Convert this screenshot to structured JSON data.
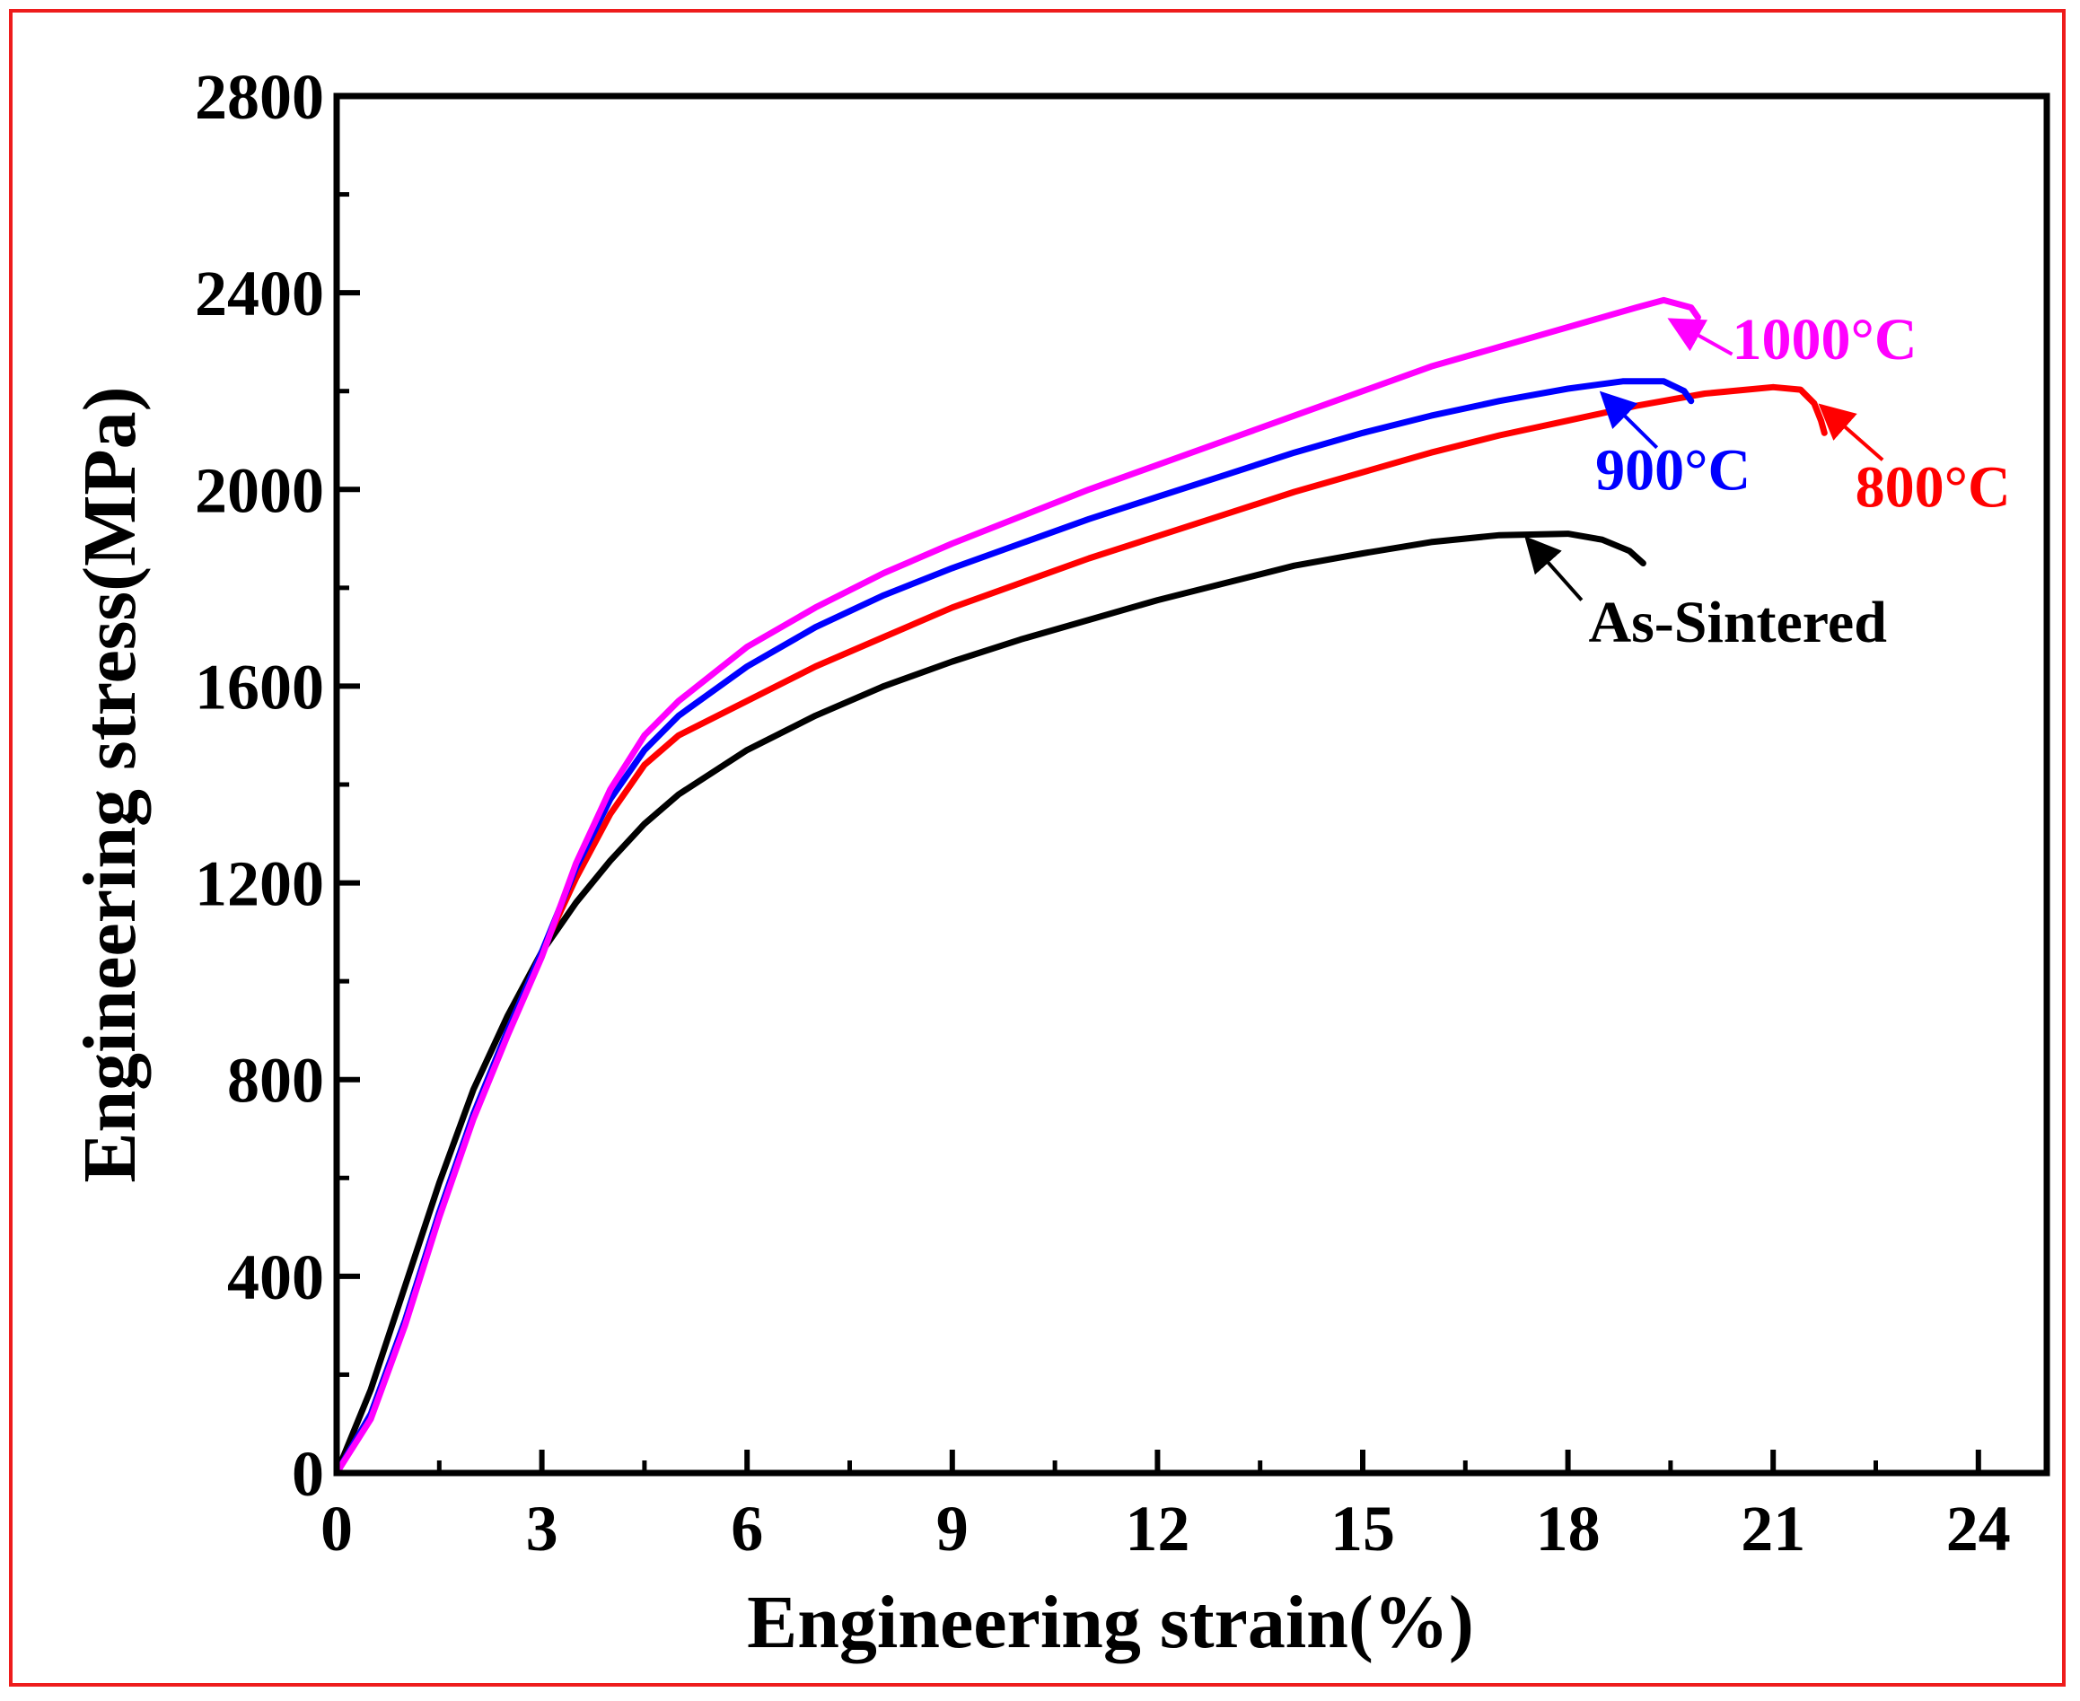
{
  "chart_data": {
    "type": "line",
    "title": "",
    "xlabel": "Engineering strain(%)",
    "ylabel": "Engineering stress(MPa)",
    "xlim": [
      0,
      25
    ],
    "ylim": [
      0,
      2800
    ],
    "xticks": [
      0,
      3,
      6,
      9,
      12,
      15,
      18,
      21,
      24
    ],
    "yticks": [
      0,
      400,
      800,
      1200,
      1600,
      2000,
      2400,
      2800
    ],
    "xtick_labels": [
      "0",
      "3",
      "6",
      "9",
      "12",
      "15",
      "18",
      "21",
      "24"
    ],
    "ytick_labels": [
      "0",
      "400",
      "800",
      "1200",
      "1600",
      "2000",
      "2400",
      "2800"
    ],
    "grid": false,
    "series": [
      {
        "name": "As-Sintered",
        "color": "#000000",
        "points": [
          [
            0,
            0
          ],
          [
            0.5,
            170
          ],
          [
            1,
            380
          ],
          [
            1.5,
            590
          ],
          [
            2,
            780
          ],
          [
            2.5,
            930
          ],
          [
            3,
            1060
          ],
          [
            3.5,
            1160
          ],
          [
            4,
            1245
          ],
          [
            4.5,
            1320
          ],
          [
            5,
            1380
          ],
          [
            6,
            1470
          ],
          [
            7,
            1540
          ],
          [
            8,
            1600
          ],
          [
            9,
            1650
          ],
          [
            10,
            1695
          ],
          [
            11,
            1735
          ],
          [
            12,
            1775
          ],
          [
            13,
            1810
          ],
          [
            14,
            1845
          ],
          [
            15,
            1870
          ],
          [
            16,
            1893
          ],
          [
            17,
            1907
          ],
          [
            18,
            1910
          ],
          [
            18.5,
            1898
          ],
          [
            18.9,
            1875
          ],
          [
            19.1,
            1850
          ]
        ],
        "annotation": {
          "text": "As-Sintered",
          "arrow_to": [
            17.4,
            1900
          ],
          "arrow_from": [
            18.2,
            1775
          ],
          "text_at": [
            18.3,
            1690
          ]
        }
      },
      {
        "name": "800°C",
        "color": "#ff0000",
        "points": [
          [
            0,
            0
          ],
          [
            0.5,
            120
          ],
          [
            1,
            310
          ],
          [
            1.5,
            530
          ],
          [
            2,
            730
          ],
          [
            2.5,
            900
          ],
          [
            3,
            1060
          ],
          [
            3.5,
            1210
          ],
          [
            4,
            1340
          ],
          [
            4.5,
            1440
          ],
          [
            5,
            1500
          ],
          [
            6,
            1570
          ],
          [
            7,
            1640
          ],
          [
            8,
            1700
          ],
          [
            9,
            1760
          ],
          [
            10,
            1810
          ],
          [
            11,
            1860
          ],
          [
            12,
            1905
          ],
          [
            13,
            1950
          ],
          [
            14,
            1995
          ],
          [
            15,
            2035
          ],
          [
            16,
            2075
          ],
          [
            17,
            2110
          ],
          [
            18,
            2140
          ],
          [
            19,
            2170
          ],
          [
            20,
            2195
          ],
          [
            21,
            2208
          ],
          [
            21.4,
            2203
          ],
          [
            21.6,
            2175
          ],
          [
            21.7,
            2140
          ],
          [
            21.75,
            2115
          ]
        ],
        "annotation": {
          "text": "800°C",
          "arrow_to": [
            21.7,
            2170
          ],
          "arrow_from": [
            22.6,
            2060
          ],
          "text_at": [
            22.2,
            1965
          ]
        }
      },
      {
        "name": "900°C",
        "color": "#0000ff",
        "points": [
          [
            0,
            0
          ],
          [
            0.5,
            120
          ],
          [
            1,
            310
          ],
          [
            1.5,
            530
          ],
          [
            2,
            730
          ],
          [
            2.5,
            900
          ],
          [
            3,
            1060
          ],
          [
            3.5,
            1230
          ],
          [
            4,
            1370
          ],
          [
            4.5,
            1470
          ],
          [
            5,
            1540
          ],
          [
            6,
            1640
          ],
          [
            7,
            1720
          ],
          [
            8,
            1785
          ],
          [
            9,
            1840
          ],
          [
            10,
            1890
          ],
          [
            11,
            1940
          ],
          [
            12,
            1985
          ],
          [
            13,
            2030
          ],
          [
            14,
            2075
          ],
          [
            15,
            2115
          ],
          [
            16,
            2150
          ],
          [
            17,
            2180
          ],
          [
            18,
            2205
          ],
          [
            18.8,
            2220
          ],
          [
            19.4,
            2220
          ],
          [
            19.7,
            2200
          ],
          [
            19.8,
            2180
          ]
        ],
        "annotation": {
          "text": "900°C",
          "arrow_to": [
            18.5,
            2195
          ],
          "arrow_from": [
            19.3,
            2085
          ],
          "text_at": [
            18.4,
            2000
          ]
        }
      },
      {
        "name": "1000°C",
        "color": "#ff00ff",
        "points": [
          [
            0,
            0
          ],
          [
            0.5,
            110
          ],
          [
            1,
            300
          ],
          [
            1.5,
            520
          ],
          [
            2,
            720
          ],
          [
            2.5,
            890
          ],
          [
            3,
            1050
          ],
          [
            3.5,
            1240
          ],
          [
            4,
            1390
          ],
          [
            4.5,
            1500
          ],
          [
            5,
            1570
          ],
          [
            6,
            1680
          ],
          [
            7,
            1760
          ],
          [
            8,
            1830
          ],
          [
            9,
            1890
          ],
          [
            10,
            1945
          ],
          [
            11,
            2000
          ],
          [
            12,
            2050
          ],
          [
            13,
            2100
          ],
          [
            14,
            2150
          ],
          [
            15,
            2200
          ],
          [
            16,
            2250
          ],
          [
            17,
            2290
          ],
          [
            18,
            2330
          ],
          [
            19,
            2370
          ],
          [
            19.4,
            2385
          ],
          [
            19.8,
            2370
          ],
          [
            19.9,
            2350
          ]
        ],
        "annotation": {
          "text": "1000°C",
          "arrow_to": [
            19.5,
            2345
          ],
          "arrow_from": [
            20.4,
            2275
          ],
          "text_at": [
            20.4,
            2265
          ]
        }
      }
    ]
  }
}
